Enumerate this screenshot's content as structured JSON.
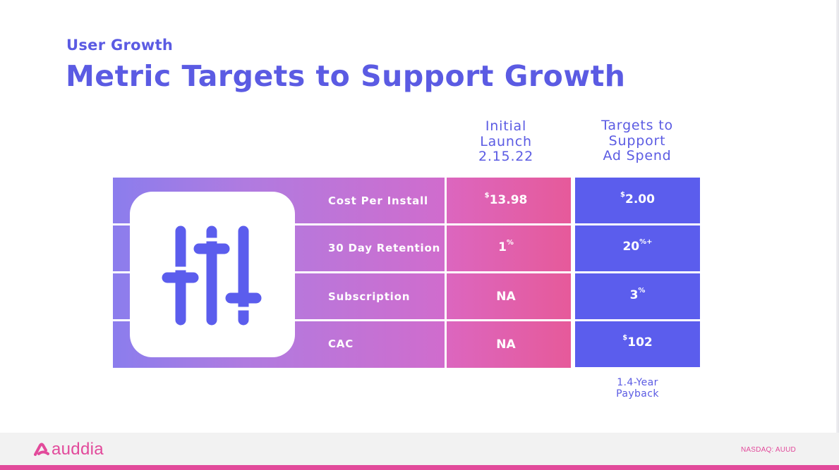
{
  "header": {
    "eyebrow": "User Growth",
    "title": "Metric Targets to Support Growth"
  },
  "columns": {
    "initial": [
      "Initial",
      "Launch",
      "2.15.22"
    ],
    "targets": [
      "Targets to",
      "Support",
      "Ad Spend"
    ]
  },
  "rows": [
    {
      "label": "Cost Per Install",
      "initial_prefix": "$",
      "initial_value": "13.98",
      "initial_suffix": "",
      "target_prefix": "$",
      "target_value": "2.00",
      "target_suffix": ""
    },
    {
      "label": "30 Day Retention",
      "initial_prefix": "",
      "initial_value": "1",
      "initial_suffix": "%",
      "target_prefix": "",
      "target_value": "20",
      "target_suffix": "%+"
    },
    {
      "label": "Subscription",
      "initial_prefix": "",
      "initial_value": "NA",
      "initial_suffix": "",
      "target_prefix": "",
      "target_value": "3",
      "target_suffix": "%"
    },
    {
      "label": "CAC",
      "initial_prefix": "",
      "initial_value": "NA",
      "initial_suffix": "",
      "target_prefix": "$",
      "target_value": "102",
      "target_suffix": ""
    }
  ],
  "footnote": [
    "1.4-Year",
    "Payback"
  ],
  "footer": {
    "logo_text": "auddia",
    "ticker": "NASDAQ: AUUD"
  },
  "colors": {
    "brand_blue": "#5b5be3",
    "target_cell": "#5b5ded",
    "brand_pink": "#e24a9b"
  },
  "icons": {
    "card": "sliders-icon",
    "logo": "auddia-logo-icon"
  }
}
